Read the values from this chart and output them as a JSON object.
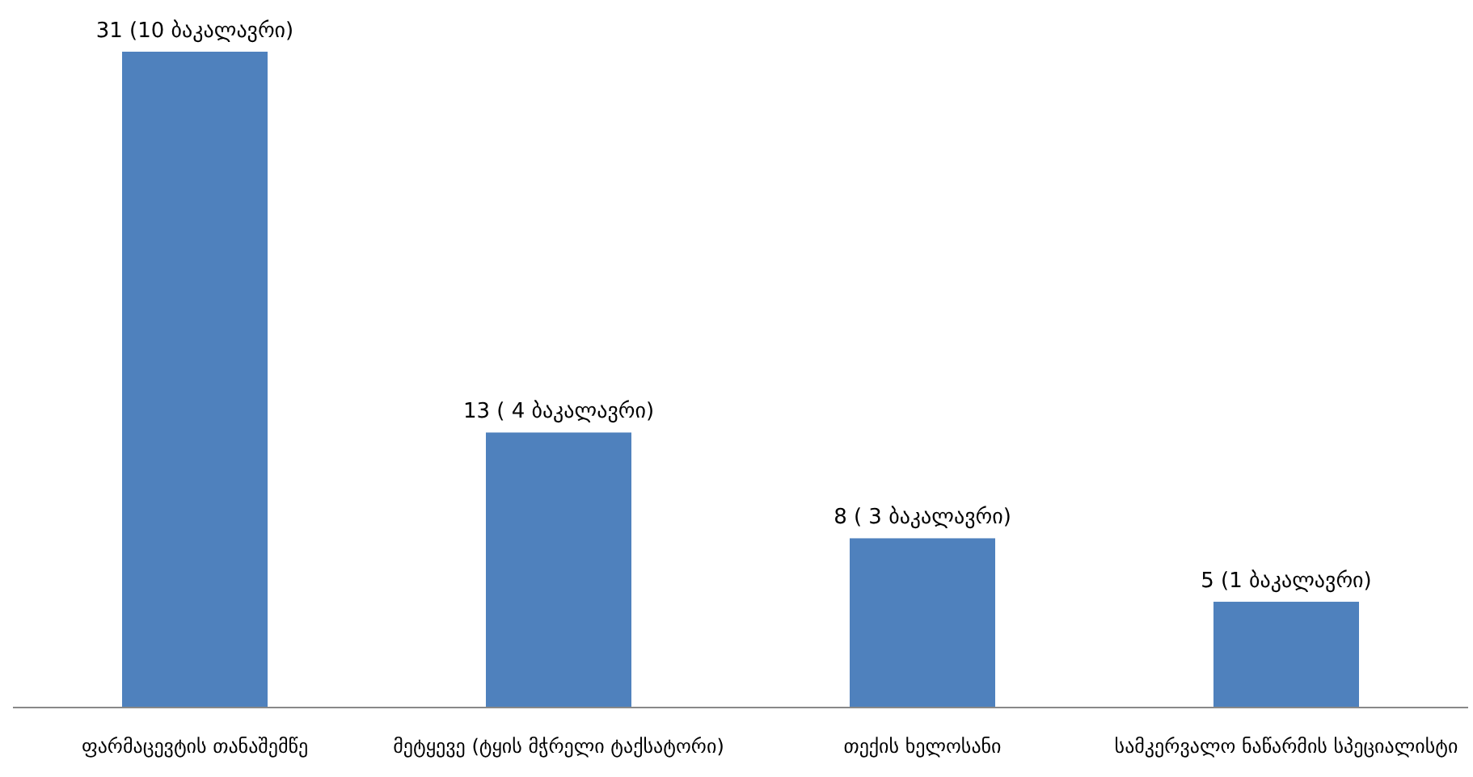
{
  "chart_data": {
    "type": "bar",
    "categories": [
      "ფარმაცევტის თანაშემწე",
      "მეტყევე (ტყის მჭრელი ტაქსატორი)",
      "თექის ხელოსანი",
      "სამკერვალო ნაწარმის სპეციალისტი"
    ],
    "values": [
      31,
      13,
      8,
      5
    ],
    "value_labels": [
      "31  (10  ბაკალავრი)",
      "13 ( 4  ბაკალავრი)",
      "8  ( 3  ბაკალავრი)",
      "5   (1  ბაკალავრი)"
    ],
    "color": "#4f81bd"
  }
}
